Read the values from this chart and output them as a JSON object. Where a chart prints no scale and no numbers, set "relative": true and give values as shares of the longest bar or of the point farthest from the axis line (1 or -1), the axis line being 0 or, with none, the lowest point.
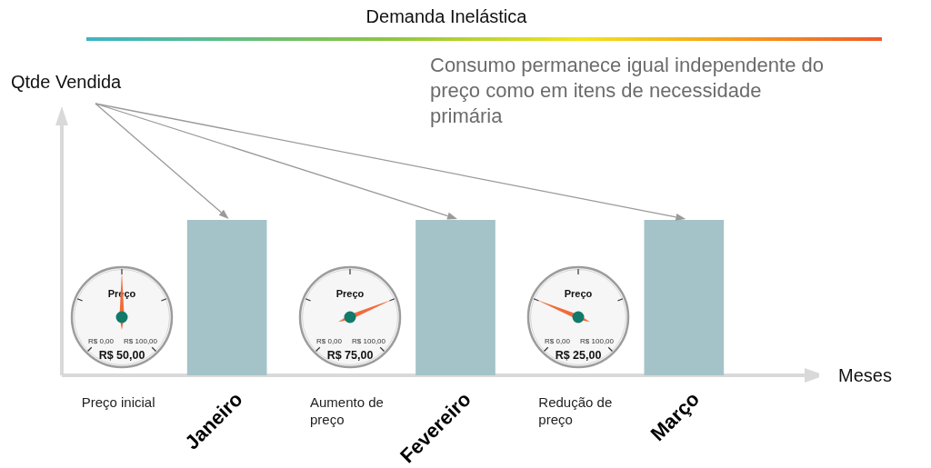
{
  "chart_data": {
    "type": "bar",
    "title": "Demanda Inelástica",
    "subtitle": "Consumo permanece igual independente do preço como em itens de necessidade primária",
    "xlabel": "Meses",
    "categories": [
      "Janeiro",
      "Fevereiro",
      "Março"
    ],
    "values": [
      1,
      1,
      1
    ],
    "color": "#a4c3c8",
    "relative": true,
    "annotations": [
      "Qtde Vendida",
      "Preço inicial",
      "Preço",
      "R$ 0,00",
      "R$ 100,00",
      "R$ 50,00",
      "Aumento de preço",
      "Preço",
      "R$ 0,00",
      "R$ 100,00",
      "R$ 75,00",
      "Redução de preço",
      "Preço",
      "R$ 0,00",
      "R$ 100,00",
      "R$ 25,00"
    ]
  }
}
